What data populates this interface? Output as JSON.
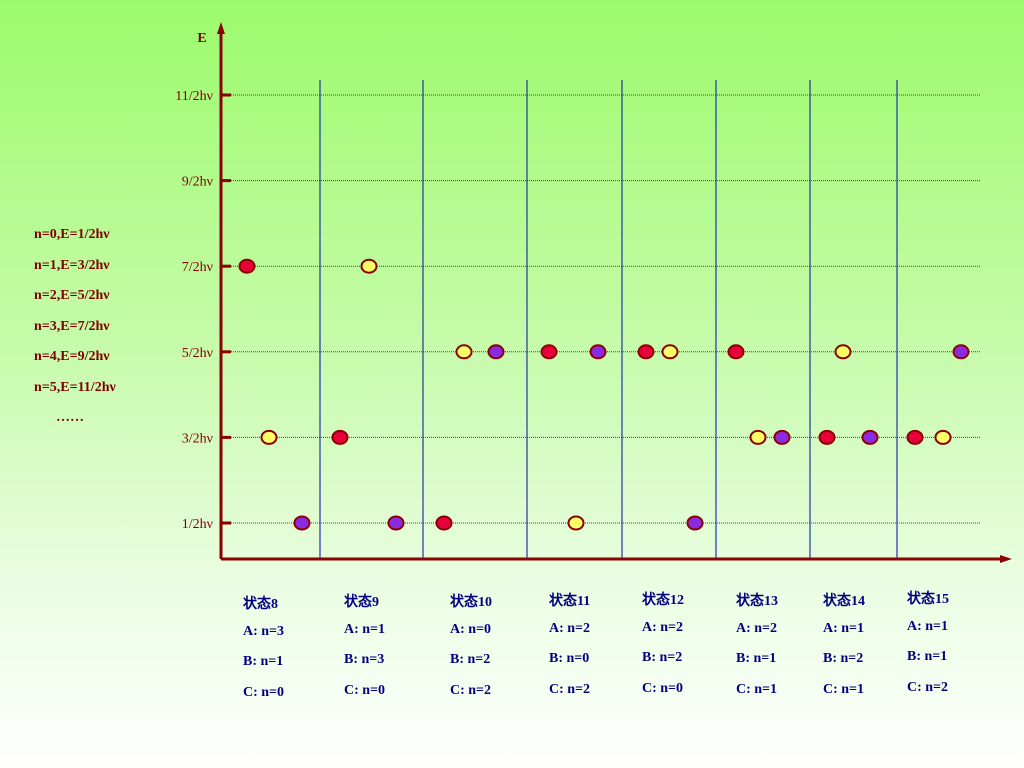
{
  "axis": {
    "y_label": "E"
  },
  "levels": [
    "11/2hν",
    "9/2hν",
    "7/2hν",
    "5/2hν",
    "3/2hν",
    "1/2hν"
  ],
  "legend": [
    "n=0,E=1/2hν",
    "n=1,E=3/2hν",
    "n=2,E=5/2hν",
    "n=3,E=7/2hν",
    "n=4,E=9/2hν",
    "n=5,E=11/2hν",
    "……"
  ],
  "particle_colors": {
    "A": "#e8003a",
    "B": "#ffff66",
    "C": "#8a2be2",
    "outline": "#8b0000"
  },
  "states": [
    {
      "title": "状态8",
      "A": "A: n=3",
      "B": "B: n=1",
      "C": "C: n=0",
      "n": {
        "A": 3,
        "B": 1,
        "C": 0
      }
    },
    {
      "title": "状态9",
      "A": "A: n=1",
      "B": "B: n=3",
      "C": "C: n=0",
      "n": {
        "A": 1,
        "B": 3,
        "C": 0
      }
    },
    {
      "title": "状态10",
      "A": "A: n=0",
      "B": "B: n=2",
      "C": "C: n=2",
      "n": {
        "A": 0,
        "B": 2,
        "C": 2
      }
    },
    {
      "title": "状态11",
      "A": "A: n=2",
      "B": "B: n=0",
      "C": "C: n=2",
      "n": {
        "A": 2,
        "B": 0,
        "C": 2
      }
    },
    {
      "title": "状态12",
      "A": "A: n=2",
      "B": "B: n=2",
      "C": "C: n=0",
      "n": {
        "A": 2,
        "B": 2,
        "C": 0
      }
    },
    {
      "title": "状态13",
      "A": "A: n=2",
      "B": "B: n=1",
      "C": "C: n=1",
      "n": {
        "A": 2,
        "B": 1,
        "C": 1
      }
    },
    {
      "title": "状态14",
      "A": "A: n=1",
      "B": "B: n=2",
      "C": "C: n=1",
      "n": {
        "A": 1,
        "B": 2,
        "C": 1
      }
    },
    {
      "title": "状态15",
      "A": "A: n=1",
      "B": "B: n=1",
      "C": "C: n=2",
      "n": {
        "A": 1,
        "B": 1,
        "C": 2
      }
    }
  ]
}
